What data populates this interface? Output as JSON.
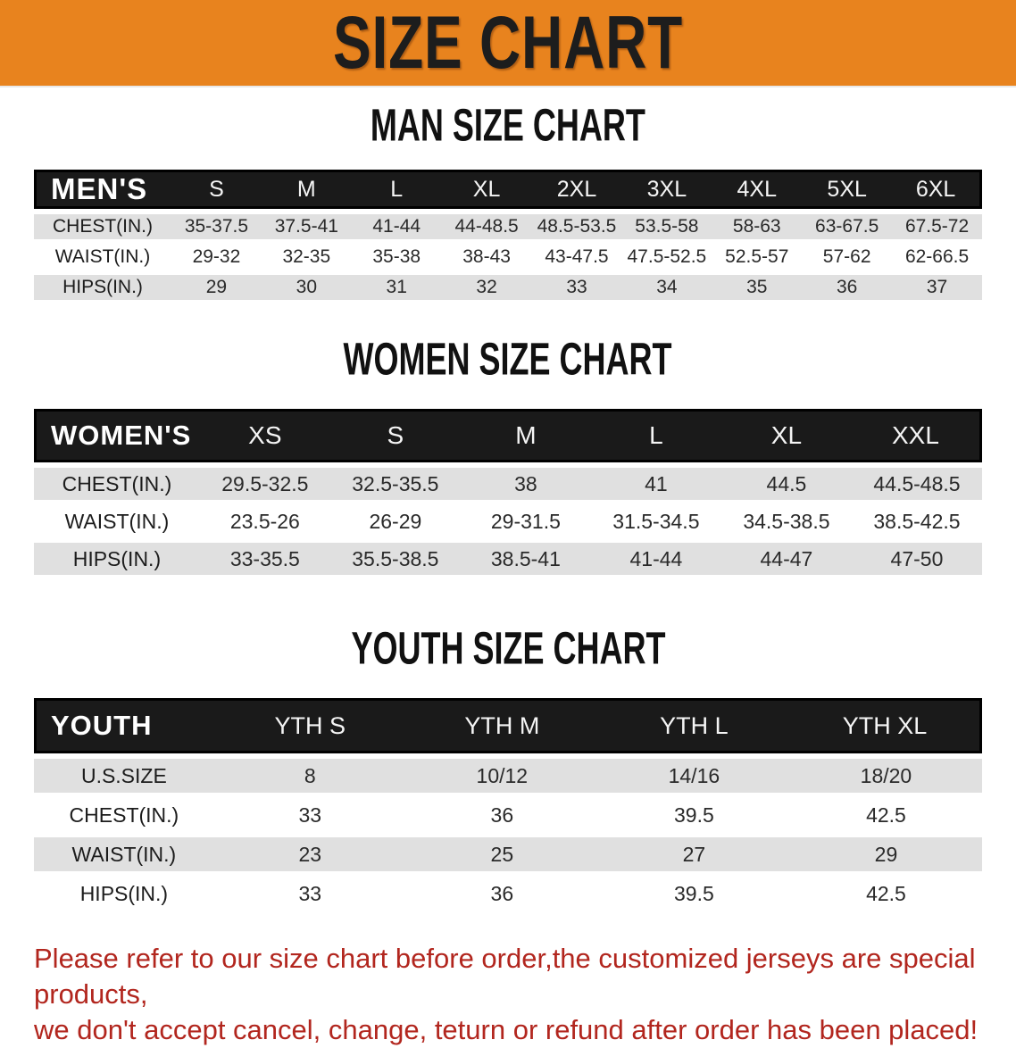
{
  "banner": {
    "title": "SIZE CHART"
  },
  "colors": {
    "banner_bg": "#E8831E",
    "header_bar": "#1A1A1A",
    "row_stripe": "#E0E0E0",
    "disclaimer_red": "#B2261E"
  },
  "sections": [
    {
      "id": "men",
      "heading": "MAN SIZE CHART",
      "table": {
        "header_label": "MEN'S",
        "columns": [
          "S",
          "M",
          "L",
          "XL",
          "2XL",
          "3XL",
          "4XL",
          "5XL",
          "6XL"
        ],
        "rows": [
          {
            "label": "CHEST(IN.)",
            "values": [
              "35-37.5",
              "37.5-41",
              "41-44",
              "44-48.5",
              "48.5-53.5",
              "53.5-58",
              "58-63",
              "63-67.5",
              "67.5-72"
            ]
          },
          {
            "label": "WAIST(IN.)",
            "values": [
              "29-32",
              "32-35",
              "35-38",
              "38-43",
              "43-47.5",
              "47.5-52.5",
              "52.5-57",
              "57-62",
              "62-66.5"
            ]
          },
          {
            "label": "HIPS(IN.)",
            "values": [
              "29",
              "30",
              "31",
              "32",
              "33",
              "34",
              "35",
              "36",
              "37"
            ]
          }
        ]
      }
    },
    {
      "id": "women",
      "heading": "WOMEN SIZE CHART",
      "table": {
        "header_label": "WOMEN'S",
        "columns": [
          "XS",
          "S",
          "M",
          "L",
          "XL",
          "XXL"
        ],
        "rows": [
          {
            "label": "CHEST(IN.)",
            "values": [
              "29.5-32.5",
              "32.5-35.5",
              "38",
              "41",
              "44.5",
              "44.5-48.5"
            ]
          },
          {
            "label": "WAIST(IN.)",
            "values": [
              "23.5-26",
              "26-29",
              "29-31.5",
              "31.5-34.5",
              "34.5-38.5",
              "38.5-42.5"
            ]
          },
          {
            "label": "HIPS(IN.)",
            "values": [
              "33-35.5",
              "35.5-38.5",
              "38.5-41",
              "41-44",
              "44-47",
              "47-50"
            ]
          }
        ]
      }
    },
    {
      "id": "youth",
      "heading": "YOUTH SIZE CHART",
      "table": {
        "header_label": "YOUTH",
        "columns": [
          "YTH S",
          "YTH M",
          "YTH L",
          "YTH XL"
        ],
        "rows": [
          {
            "label": "U.S.SIZE",
            "values": [
              "8",
              "10/12",
              "14/16",
              "18/20"
            ]
          },
          {
            "label": "CHEST(IN.)",
            "values": [
              "33",
              "36",
              "39.5",
              "42.5"
            ]
          },
          {
            "label": "WAIST(IN.)",
            "values": [
              "23",
              "25",
              "27",
              "29"
            ]
          },
          {
            "label": "HIPS(IN.)",
            "values": [
              "33",
              "36",
              "39.5",
              "42.5"
            ]
          }
        ]
      }
    }
  ],
  "disclaimer": {
    "lines": [
      "Please refer to our size chart before order,the customized jerseys are special products,",
      "we don't accept cancel, change, teturn or refund after order has been placed!"
    ]
  }
}
